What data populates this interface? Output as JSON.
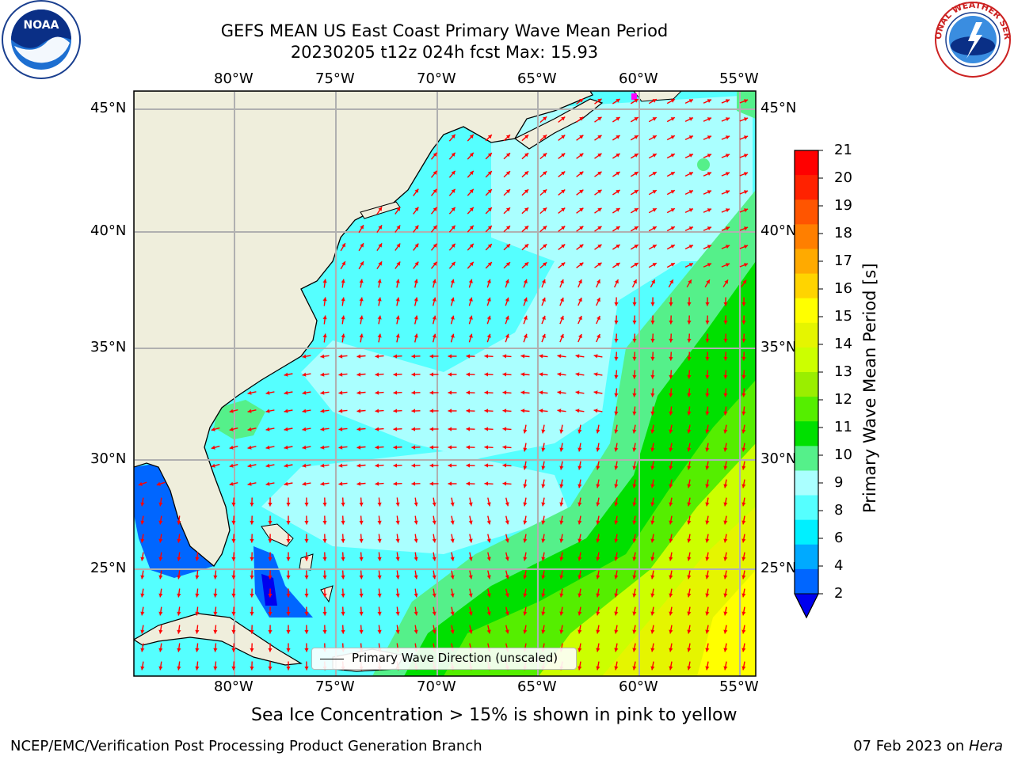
{
  "header": {
    "title_line1": "GEFS MEAN US East Coast Primary Wave Mean Period",
    "title_line2": "20230205 t12z 024h fcst   Max: 15.93"
  },
  "logos": {
    "left": {
      "text": "NOAA",
      "ring_text": "NATIONAL OCEANIC AND ATMOSPHERIC ADMINISTRATION · U.S. DEPARTMENT OF COMMERCE"
    },
    "right": {
      "ring_text": "NATIONAL WEATHER SERVICE"
    }
  },
  "map": {
    "lon_labels_top": [
      "80°W",
      "75°W",
      "70°W",
      "65°W",
      "60°W",
      "55°W"
    ],
    "lon_labels_bottom": [
      "80°W",
      "75°W",
      "70°W",
      "65°W",
      "60°W",
      "55°W"
    ],
    "lat_labels_left": [
      "45°N",
      "40°N",
      "35°N",
      "30°N",
      "25°N"
    ],
    "lat_labels_right": [
      "45°N",
      "40°N",
      "35°N",
      "30°N",
      "25°N"
    ],
    "legend_label": "Primary Wave Direction (unscaled)",
    "land_color": "#efeedc",
    "arrow_color": "#ff0000"
  },
  "colorbar": {
    "label": "Primary Wave Mean Period [s]",
    "ticks": [
      "21",
      "20",
      "19",
      "18",
      "17",
      "16",
      "15",
      "14",
      "13",
      "12",
      "11",
      "10",
      "9",
      "8",
      "6",
      "4",
      "2"
    ],
    "colors_top_to_bottom": [
      "#ff0000",
      "#ff2200",
      "#ff5500",
      "#ff7f00",
      "#ffaa00",
      "#ffd400",
      "#ffff00",
      "#e5f500",
      "#ccff00",
      "#9aee00",
      "#55ee00",
      "#00e000",
      "#55f08a",
      "#aaffff",
      "#55ffff",
      "#00f0ff",
      "#00aaff",
      "#0066ff"
    ],
    "extend_color": "#0000ee"
  },
  "note": "Sea Ice Concentration > 15% is shown in pink to yellow",
  "footer": {
    "left": "NCEP/EMC/Verification Post Processing Product Generation Branch",
    "right_date": "07 Feb 2023 on ",
    "right_host": "Hera"
  }
}
